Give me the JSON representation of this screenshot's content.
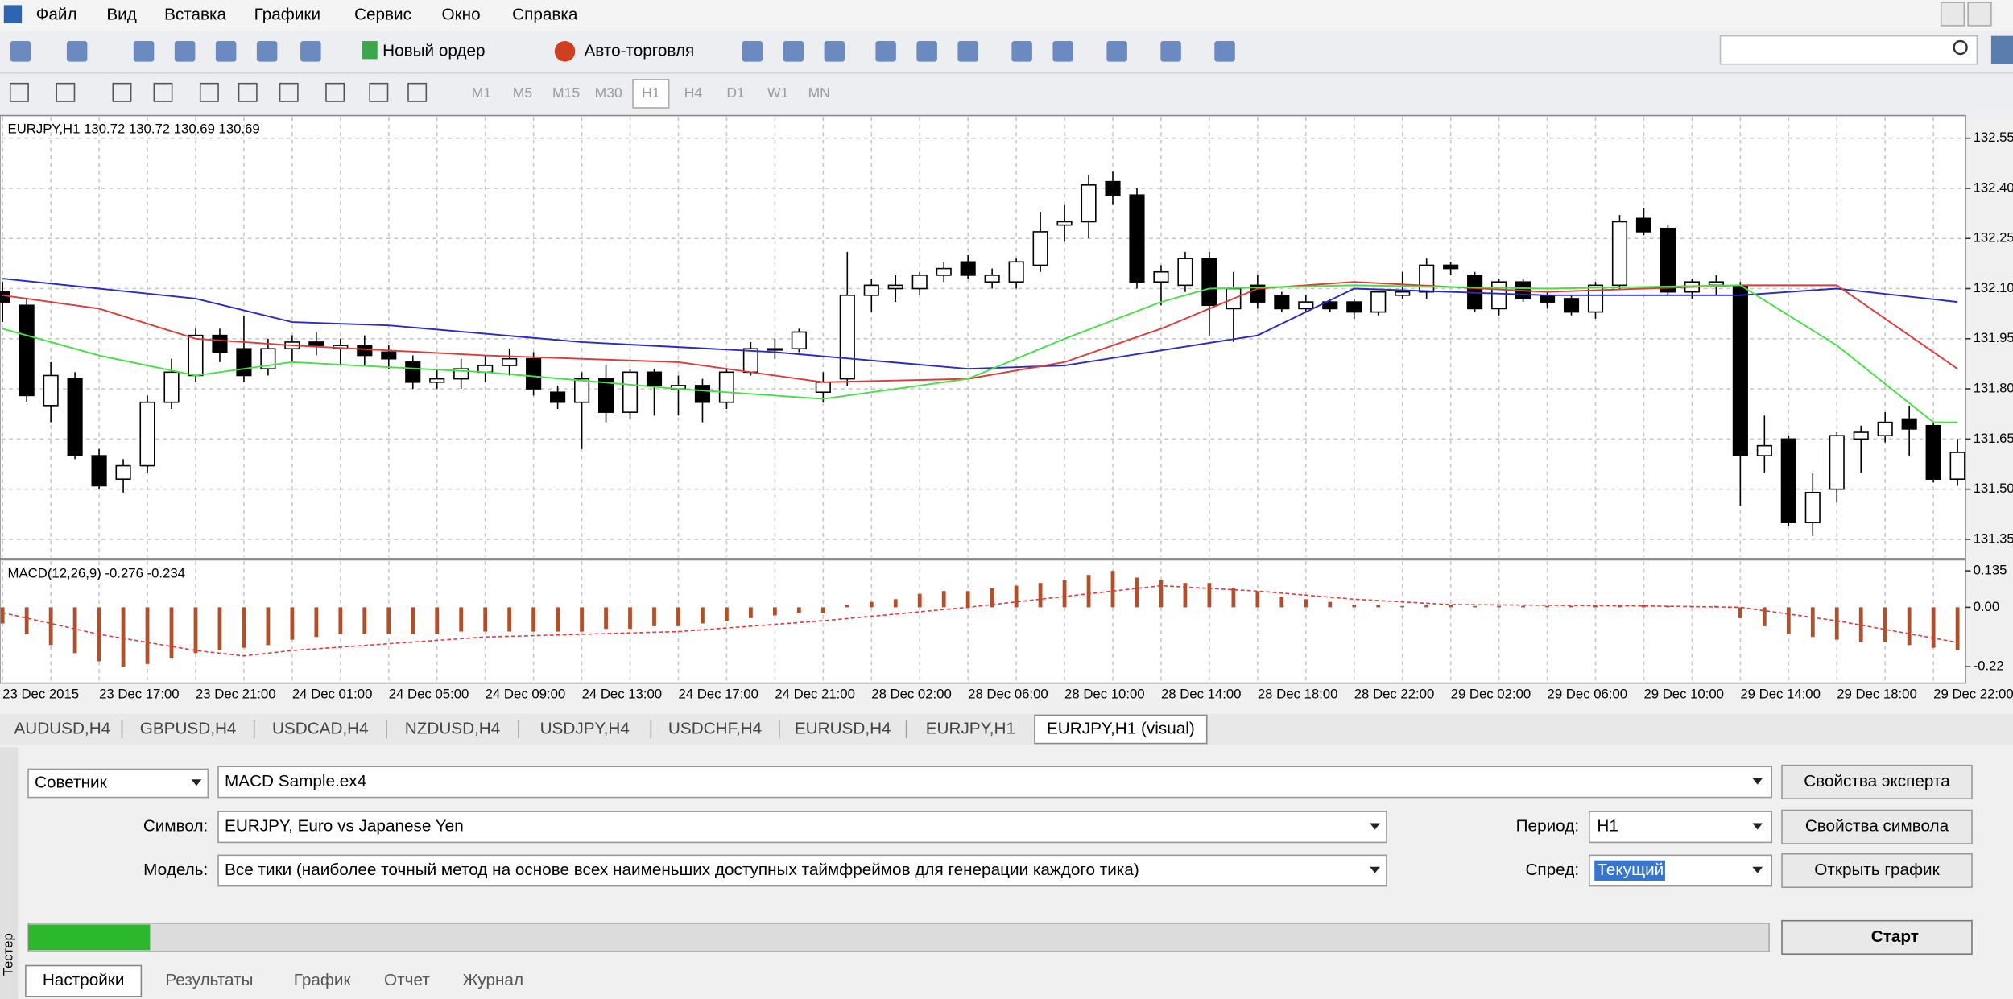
{
  "menu": [
    "Файл",
    "Вид",
    "Вставка",
    "Графики",
    "Сервис",
    "Окно",
    "Справка"
  ],
  "toolbar": {
    "new_order": "Новый ордер",
    "auto_trading": "Авто-торговля",
    "timeframes": [
      "M1",
      "M5",
      "M15",
      "M30",
      "H1",
      "H4",
      "D1",
      "W1",
      "MN"
    ],
    "active_timeframe": 4
  },
  "chart_data": [
    {
      "type": "candlestick",
      "title": "EURJPY,H1  130.72 130.72 130.69 130.69",
      "categories": [
        "23 Dec 2015",
        null,
        null,
        null,
        "23 Dec 17:00",
        null,
        null,
        null,
        "23 Dec 21:00",
        null,
        null,
        null,
        "24 Dec 01:00",
        null,
        null,
        null,
        "24 Dec 05:00",
        null,
        null,
        null,
        "24 Dec 09:00",
        null,
        null,
        null,
        "24 Dec 13:00",
        null,
        null,
        null,
        "24 Dec 17:00",
        null,
        null,
        null,
        "24 Dec 21:00",
        null,
        null,
        null,
        "28 Dec 02:00",
        null,
        null,
        null,
        "28 Dec 06:00",
        null,
        null,
        null,
        "28 Dec 10:00",
        null,
        null,
        null,
        "28 Dec 14:00",
        null,
        null,
        null,
        "28 Dec 18:00",
        null,
        null,
        null,
        "28 Dec 22:00",
        null,
        null,
        null,
        "29 Dec 02:00",
        null,
        null,
        null,
        "29 Dec 06:00",
        null,
        null,
        null,
        "29 Dec 10:00",
        null,
        null,
        null,
        "29 Dec 14:00",
        null,
        null,
        null,
        "29 Dec 18:00",
        null,
        null,
        null,
        "29 Dec 22:00",
        null
      ],
      "open": [
        132.09,
        132.05,
        131.75,
        131.83,
        131.6,
        131.53,
        131.57,
        131.76,
        131.84,
        131.96,
        131.92,
        131.86,
        131.92,
        131.94,
        131.92,
        131.93,
        131.91,
        131.88,
        131.82,
        131.83,
        131.85,
        131.87,
        131.89,
        131.79,
        131.76,
        131.83,
        131.73,
        131.85,
        131.8,
        131.81,
        131.76,
        131.85,
        131.92,
        131.92,
        131.79,
        131.83,
        132.08,
        132.1,
        132.1,
        132.14,
        132.18,
        132.12,
        132.12,
        132.17,
        132.29,
        132.3,
        132.42,
        132.38,
        132.12,
        132.11,
        132.19,
        132.04,
        132.11,
        132.08,
        132.04,
        132.06,
        132.06,
        132.03,
        132.08,
        132.09,
        132.17,
        132.14,
        132.04,
        132.12,
        132.08,
        132.07,
        132.03,
        132.11,
        132.31,
        132.28,
        132.09,
        132.11,
        132.11,
        131.6,
        131.65,
        131.4,
        131.5,
        131.65,
        131.66,
        131.71,
        131.69,
        131.53
      ],
      "high": [
        132.12,
        132.07,
        131.88,
        131.85,
        131.62,
        131.59,
        131.78,
        131.89,
        131.98,
        131.98,
        132.02,
        131.95,
        131.96,
        131.97,
        131.95,
        131.96,
        131.93,
        131.9,
        131.86,
        131.89,
        131.9,
        131.92,
        131.91,
        131.81,
        131.85,
        131.87,
        131.86,
        131.86,
        131.84,
        131.83,
        131.86,
        131.94,
        131.95,
        131.98,
        131.85,
        132.21,
        132.13,
        132.14,
        132.15,
        132.18,
        132.2,
        132.16,
        132.19,
        132.33,
        132.35,
        132.44,
        132.45,
        132.4,
        132.17,
        132.21,
        132.21,
        132.15,
        132.14,
        132.09,
        132.08,
        132.07,
        132.07,
        132.09,
        132.15,
        132.19,
        132.18,
        132.15,
        132.13,
        132.13,
        132.09,
        132.08,
        132.12,
        132.32,
        132.34,
        132.29,
        132.13,
        132.14,
        132.12,
        131.72,
        131.66,
        131.55,
        131.67,
        131.69,
        131.73,
        131.75,
        131.7,
        131.65
      ],
      "low": [
        132.0,
        131.76,
        131.7,
        131.59,
        131.5,
        131.49,
        131.55,
        131.74,
        131.82,
        131.88,
        131.82,
        131.84,
        131.88,
        131.9,
        131.87,
        131.87,
        131.86,
        131.8,
        131.8,
        131.8,
        131.82,
        131.84,
        131.78,
        131.74,
        131.62,
        131.7,
        131.71,
        131.72,
        131.72,
        131.7,
        131.74,
        131.84,
        131.89,
        131.91,
        131.76,
        131.81,
        132.03,
        132.06,
        132.08,
        132.12,
        132.13,
        132.1,
        132.1,
        132.15,
        132.24,
        132.25,
        132.35,
        132.1,
        132.05,
        132.09,
        131.96,
        131.94,
        132.04,
        132.03,
        132.03,
        132.03,
        132.01,
        132.02,
        132.07,
        132.07,
        132.14,
        132.03,
        132.02,
        132.06,
        132.04,
        132.02,
        132.01,
        132.1,
        132.26,
        132.08,
        132.07,
        132.08,
        131.45,
        131.55,
        131.39,
        131.36,
        131.46,
        131.55,
        131.64,
        131.6,
        131.52,
        131.51
      ],
      "close": [
        132.06,
        131.78,
        131.84,
        131.6,
        131.51,
        131.57,
        131.76,
        131.85,
        131.96,
        131.91,
        131.84,
        131.92,
        131.94,
        131.93,
        131.93,
        131.9,
        131.89,
        131.82,
        131.83,
        131.86,
        131.87,
        131.89,
        131.8,
        131.76,
        131.83,
        131.73,
        131.85,
        131.81,
        131.81,
        131.76,
        131.85,
        131.92,
        131.92,
        131.97,
        131.82,
        132.08,
        132.11,
        132.11,
        132.14,
        132.16,
        132.14,
        132.14,
        132.18,
        132.27,
        132.3,
        132.41,
        132.38,
        132.12,
        132.15,
        132.19,
        132.05,
        132.1,
        132.06,
        132.04,
        132.06,
        132.04,
        132.03,
        132.09,
        132.09,
        132.17,
        132.16,
        132.04,
        132.12,
        132.07,
        132.06,
        132.03,
        132.11,
        132.3,
        132.27,
        132.09,
        132.12,
        132.12,
        131.6,
        131.63,
        131.4,
        131.49,
        131.66,
        131.67,
        131.7,
        131.68,
        131.53,
        131.61
      ],
      "up_color": "#ffffff",
      "down_color": "#000000",
      "series": [
        {
          "color": "#2a2ac8",
          "x": [
            0,
            8,
            12,
            16,
            24,
            32,
            40,
            44,
            52,
            56,
            64,
            72,
            76,
            81
          ],
          "values": [
            132.13,
            132.07,
            132.0,
            131.99,
            131.94,
            131.91,
            131.86,
            131.87,
            131.96,
            132.1,
            132.08,
            132.08,
            132.1,
            132.06
          ]
        },
        {
          "color": "#e03a3a",
          "x": [
            0,
            4,
            8,
            12,
            20,
            28,
            34,
            40,
            44,
            48,
            52,
            56,
            64,
            68,
            72,
            76,
            81
          ],
          "values": [
            132.08,
            132.04,
            131.95,
            131.93,
            131.9,
            131.88,
            131.82,
            131.83,
            131.88,
            131.98,
            132.1,
            132.12,
            132.09,
            132.1,
            132.11,
            132.11,
            131.86
          ]
        },
        {
          "color": "#44e044",
          "x": [
            0,
            4,
            8,
            12,
            20,
            28,
            34,
            40,
            44,
            48,
            50,
            56,
            64,
            72,
            76,
            80,
            81
          ],
          "values": [
            131.98,
            131.9,
            131.84,
            131.88,
            131.85,
            131.8,
            131.77,
            131.83,
            131.95,
            132.06,
            132.1,
            132.11,
            132.1,
            132.11,
            131.93,
            131.7,
            131.7
          ]
        }
      ],
      "ylim": [
        131.3,
        132.61
      ],
      "yticks": [
        132.55,
        {
          "value": 132.4,
          "label": "132.40"
        },
        132.25,
        {
          "value": 132.1,
          "label": "132.10"
        },
        131.95,
        {
          "value": 131.8,
          "label": "131.80"
        },
        131.65,
        {
          "value": 131.5,
          "label": "131.50"
        },
        131.35
      ],
      "grid": true
    },
    {
      "type": "bar",
      "title": "MACD(12,26,9) -0.276 -0.234",
      "color": "#b0502a",
      "values": [
        -0.06,
        -0.1,
        -0.14,
        -0.17,
        -0.2,
        -0.22,
        -0.21,
        -0.19,
        -0.17,
        -0.16,
        -0.15,
        -0.14,
        -0.12,
        -0.11,
        -0.1,
        -0.1,
        -0.1,
        -0.1,
        -0.1,
        -0.09,
        -0.09,
        -0.09,
        -0.09,
        -0.09,
        -0.09,
        -0.08,
        -0.08,
        -0.07,
        -0.07,
        -0.06,
        -0.05,
        -0.04,
        -0.03,
        -0.02,
        -0.02,
        0.01,
        0.02,
        0.03,
        0.05,
        0.06,
        0.06,
        0.07,
        0.08,
        0.09,
        0.1,
        0.12,
        0.135,
        0.11,
        0.1,
        0.09,
        0.09,
        0.07,
        0.06,
        0.04,
        0.03,
        0.02,
        0.01,
        0.01,
        0.005,
        0.01,
        0.01,
        0.005,
        0.005,
        0.005,
        0.005,
        0.005,
        0.005,
        0.01,
        0.01,
        0.005,
        0.005,
        0.005,
        -0.04,
        -0.07,
        -0.1,
        -0.11,
        -0.12,
        -0.13,
        -0.13,
        -0.14,
        -0.15,
        -0.16
      ],
      "signal": {
        "color": "#e03a3a",
        "x": [
          0,
          4,
          8,
          10,
          12,
          20,
          28,
          34,
          40,
          44,
          48,
          52,
          56,
          60,
          68,
          72,
          76,
          81
        ],
        "values": [
          -0.02,
          -0.1,
          -0.16,
          -0.18,
          -0.16,
          -0.11,
          -0.09,
          -0.05,
          0.0,
          0.04,
          0.08,
          0.06,
          0.03,
          0.01,
          0.005,
          0.0,
          -0.05,
          -0.13
        ]
      },
      "ylim": [
        -0.281,
        0.171
      ],
      "yticks": [
        0.135,
        {
          "value": 0,
          "label": "0.00"
        },
        -0.22
      ]
    }
  ],
  "tabs": [
    "AUDUSD,H4",
    "GBPUSD,H4",
    "USDCAD,H4",
    "NZDUSD,H4",
    "USDJPY,H4",
    "USDCHF,H4",
    "EURUSD,H4",
    "EURJPY,H1",
    "EURJPY,H1 (visual)"
  ],
  "tester": {
    "type_select": "Советник",
    "expert": "MACD Sample.ex4",
    "expert_button": "Свойства эксперта",
    "symbol_label": "Символ:",
    "symbol": "EURJPY, Euro vs Japanese Yen",
    "period_label": "Период:",
    "period": "H1",
    "symbol_button": "Свойства символа",
    "model_label": "Модель:",
    "model": "Все тики (наиболее точный метод на основе всех наименьших доступных таймфреймов для генерации каждого тика)",
    "spread_label": "Спред:",
    "spread": "Текущий",
    "chart_button": "Открыть график",
    "progress": 7,
    "start": "Старт",
    "side_label": "Тестер",
    "tabs": [
      "Настройки",
      "Результаты",
      "График",
      "Отчет",
      "Журнал"
    ]
  }
}
